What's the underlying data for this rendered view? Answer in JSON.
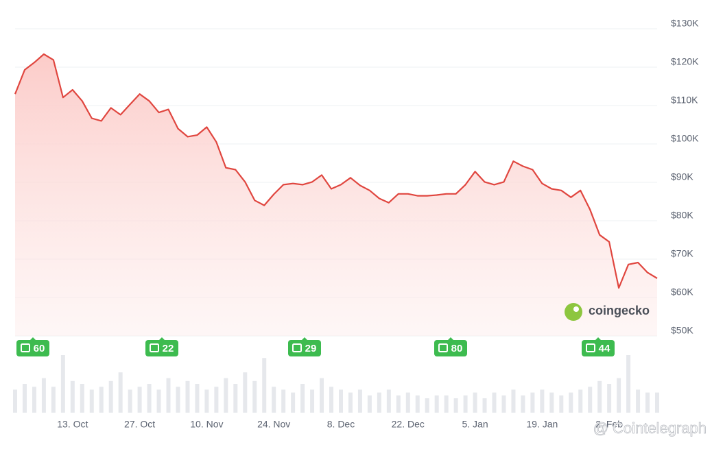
{
  "chart_data": [
    {
      "type": "area",
      "categories": [
        null,
        null,
        null,
        null,
        null,
        null,
        "13. Oct",
        null,
        null,
        null,
        null,
        null,
        null,
        "27. Oct",
        null,
        null,
        null,
        null,
        null,
        null,
        "10. Nov",
        null,
        null,
        null,
        null,
        null,
        null,
        "24. Nov",
        null,
        null,
        null,
        null,
        null,
        null,
        "8. Dec",
        null,
        null,
        null,
        null,
        null,
        null,
        "22. Dec",
        null,
        null,
        null,
        null,
        null,
        null,
        "5. Jan",
        null,
        null,
        null,
        null,
        null,
        null,
        "19. Jan",
        null,
        null,
        null,
        null,
        null,
        null,
        "2. Feb",
        null,
        null,
        null,
        null,
        null
      ],
      "values": [
        113000,
        119300,
        121200,
        123400,
        121900,
        112100,
        114100,
        111200,
        106700,
        106000,
        109400,
        107600,
        110300,
        113000,
        111200,
        108200,
        109000,
        104000,
        101900,
        102300,
        104400,
        100500,
        93800,
        93300,
        90100,
        85300,
        84000,
        86900,
        89400,
        89700,
        89400,
        90100,
        91900,
        88300,
        89400,
        91200,
        89200,
        87900,
        85800,
        84700,
        87000,
        87000,
        86500,
        86500,
        86700,
        87000,
        87000,
        89400,
        92800,
        90100,
        89400,
        90100,
        95500,
        94200,
        93300,
        89700,
        88300,
        87900,
        86100,
        87900,
        82900,
        76300,
        74500,
        62500,
        68600,
        69100,
        66500,
        65000
      ],
      "color": "#e0463f",
      "ylim": [
        50000,
        130000
      ],
      "yticks": [
        {
          "value": 50000,
          "label": "$50K"
        },
        {
          "value": 60000,
          "label": "$60K"
        },
        {
          "value": 70000,
          "label": "$70K"
        },
        {
          "value": 80000,
          "label": "$80K"
        },
        {
          "value": 90000,
          "label": "$90K"
        },
        {
          "value": 100000,
          "label": "$100K"
        },
        {
          "value": 110000,
          "label": "$110K"
        },
        {
          "value": 120000,
          "label": "$120K"
        },
        {
          "value": 130000,
          "label": "$130K"
        }
      ],
      "grid": true,
      "annotations": [
        "60",
        "22",
        "29",
        "80",
        "44"
      ],
      "watermarks": [
        "coingecko",
        "@ Cointelegraph"
      ]
    },
    {
      "type": "bar",
      "values": [
        40,
        50,
        45,
        60,
        45,
        100,
        55,
        50,
        40,
        45,
        55,
        70,
        40,
        45,
        50,
        40,
        60,
        45,
        55,
        50,
        40,
        45,
        60,
        50,
        70,
        55,
        95,
        45,
        40,
        35,
        50,
        40,
        60,
        45,
        40,
        35,
        40,
        30,
        35,
        40,
        30,
        35,
        30,
        25,
        30,
        30,
        25,
        30,
        35,
        25,
        35,
        30,
        40,
        30,
        35,
        40,
        35,
        30,
        35,
        40,
        45,
        55,
        50,
        60,
        100,
        40,
        35,
        35
      ],
      "color": "#e6e8ec",
      "ylim": [
        0,
        100
      ]
    }
  ]
}
